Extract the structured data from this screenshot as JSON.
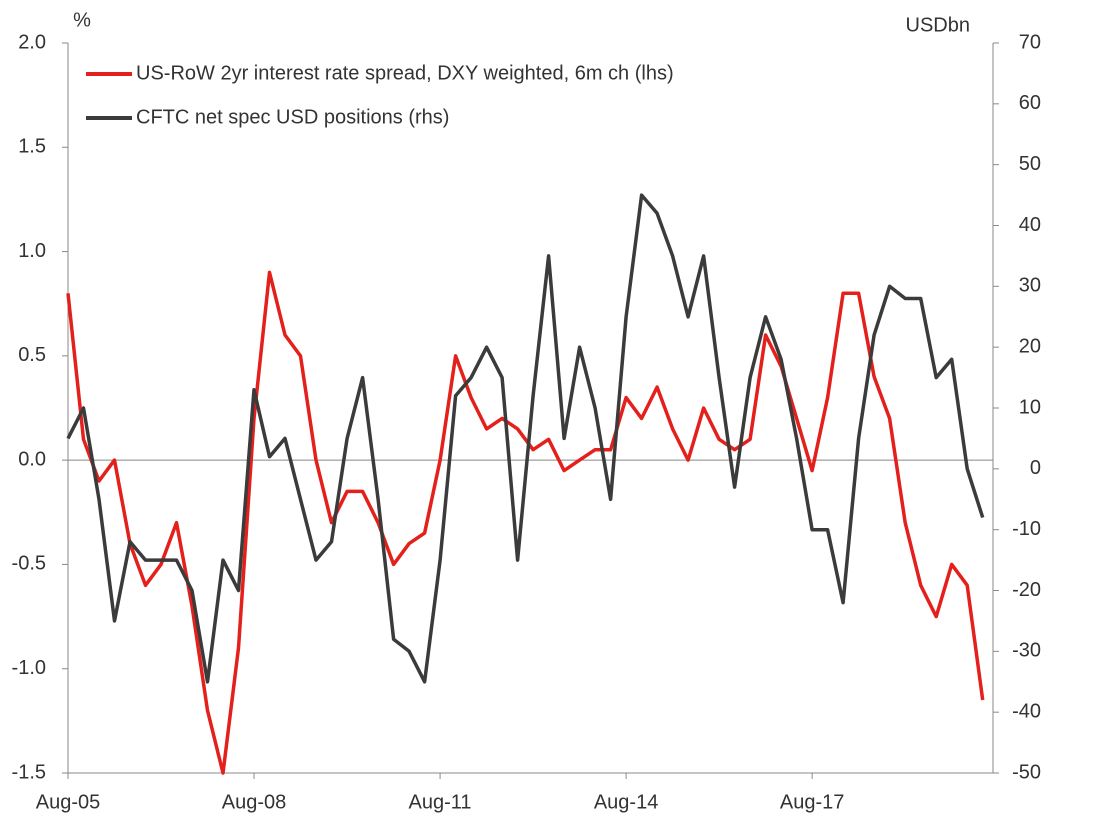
{
  "chart_data": {
    "type": "line",
    "y_label": "%",
    "y2_label": "USDbn",
    "x": [
      "2005-08",
      "2005-11",
      "2006-02",
      "2006-05",
      "2006-08",
      "2006-11",
      "2007-02",
      "2007-05",
      "2007-08",
      "2007-11",
      "2008-02",
      "2008-05",
      "2008-08",
      "2008-11",
      "2009-02",
      "2009-05",
      "2009-08",
      "2009-11",
      "2010-02",
      "2010-05",
      "2010-08",
      "2010-11",
      "2011-02",
      "2011-05",
      "2011-08",
      "2011-11",
      "2012-02",
      "2012-05",
      "2012-08",
      "2012-11",
      "2013-02",
      "2013-05",
      "2013-08",
      "2013-11",
      "2014-02",
      "2014-05",
      "2014-08",
      "2014-11",
      "2015-02",
      "2015-05",
      "2015-08",
      "2015-11",
      "2016-02",
      "2016-05",
      "2016-08",
      "2016-11",
      "2017-02",
      "2017-05",
      "2017-08",
      "2017-11",
      "2018-02",
      "2018-05",
      "2018-08",
      "2018-11",
      "2019-02",
      "2019-05",
      "2019-08",
      "2019-11",
      "2020-02",
      "2020-05"
    ],
    "series": [
      {
        "name": "US-RoW 2yr interest rate spread, DXY weighted, 6m ch (lhs)",
        "color": "#e3201c",
        "axis": "y",
        "values": [
          0.8,
          0.1,
          -0.1,
          0.0,
          -0.4,
          -0.6,
          -0.5,
          -0.3,
          -0.7,
          -1.2,
          -1.5,
          -0.9,
          0.2,
          0.9,
          0.6,
          0.5,
          0.0,
          -0.3,
          -0.15,
          -0.15,
          -0.3,
          -0.5,
          -0.4,
          -0.35,
          0.0,
          0.5,
          0.3,
          0.15,
          0.2,
          0.15,
          0.05,
          0.1,
          -0.05,
          0.0,
          0.05,
          0.05,
          0.3,
          0.2,
          0.35,
          0.15,
          0.0,
          0.25,
          0.1,
          0.05,
          0.1,
          0.6,
          0.45,
          0.2,
          -0.05,
          0.3,
          0.8,
          0.8,
          0.4,
          0.2,
          -0.3,
          -0.6,
          -0.75,
          -0.5,
          -0.6,
          -1.15
        ]
      },
      {
        "name": "CFTC net spec USD positions (rhs)",
        "color": "#3b3b3b",
        "axis": "y2",
        "values": [
          5,
          10,
          -5,
          -25,
          -12,
          -15,
          -15,
          -15,
          -20,
          -35,
          -15,
          -20,
          13,
          2,
          5,
          -5,
          -15,
          -12,
          5,
          15,
          -5,
          -28,
          -30,
          -35,
          -15,
          12,
          15,
          20,
          15,
          -15,
          12,
          35,
          5,
          20,
          10,
          -5,
          25,
          45,
          42,
          35,
          25,
          35,
          15,
          -3,
          15,
          25,
          18,
          5,
          -10,
          -10,
          -22,
          5,
          22,
          30,
          28,
          28,
          15,
          18,
          0,
          -8
        ]
      }
    ],
    "xlim": [
      "2005-08",
      "2020-07"
    ],
    "xticks": [
      {
        "value": "2005-08",
        "label": "Aug-05"
      },
      {
        "value": "2008-08",
        "label": "Aug-08"
      },
      {
        "value": "2011-08",
        "label": "Aug-11"
      },
      {
        "value": "2014-08",
        "label": "Aug-14"
      },
      {
        "value": "2017-08",
        "label": "Aug-17"
      }
    ],
    "ylim": [
      -1.5,
      2.0
    ],
    "yticks": [
      -1.5,
      {
        "value": -1.0,
        "label": "-1.0"
      },
      -0.5,
      {
        "value": 0.0,
        "label": "0.0"
      },
      0.5,
      {
        "value": 1.0,
        "label": "1.0"
      },
      1.5,
      {
        "value": 2.0,
        "label": "2.0"
      }
    ],
    "y2lim": [
      -50,
      70
    ],
    "y2ticks": [
      -50,
      -40,
      -30,
      -20,
      -10,
      0,
      10,
      20,
      30,
      40,
      50,
      60,
      70
    ],
    "zero_line": true,
    "legend": "top-left"
  }
}
